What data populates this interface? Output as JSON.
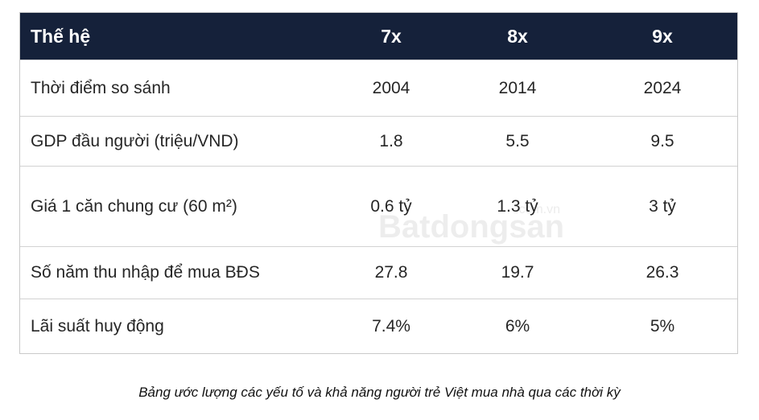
{
  "table": {
    "header": [
      "Thế hệ",
      "7x",
      "8x",
      "9x"
    ],
    "rows": [
      [
        "Thời điểm so sánh",
        "2004",
        "2014",
        "2024"
      ],
      [
        "GDP đầu người (triệu/VND)",
        "1.8",
        "5.5",
        "9.5"
      ],
      [
        "Giá 1 căn chung cư (60 m²)",
        "0.6 tỷ",
        "1.3 tỷ",
        "3 tỷ"
      ],
      [
        "Số năm thu nhập để mua BĐS",
        "27.8",
        "19.7",
        "26.3"
      ],
      [
        "Lãi suất huy động",
        "7.4%",
        "6%",
        "5%"
      ]
    ]
  },
  "watermark": {
    "brand": "Batdongsan",
    "domain": ".com.vn"
  },
  "caption": "Bảng ước lượng các yếu tố và khả năng người trẻ Việt mua nhà qua các thời kỳ"
}
